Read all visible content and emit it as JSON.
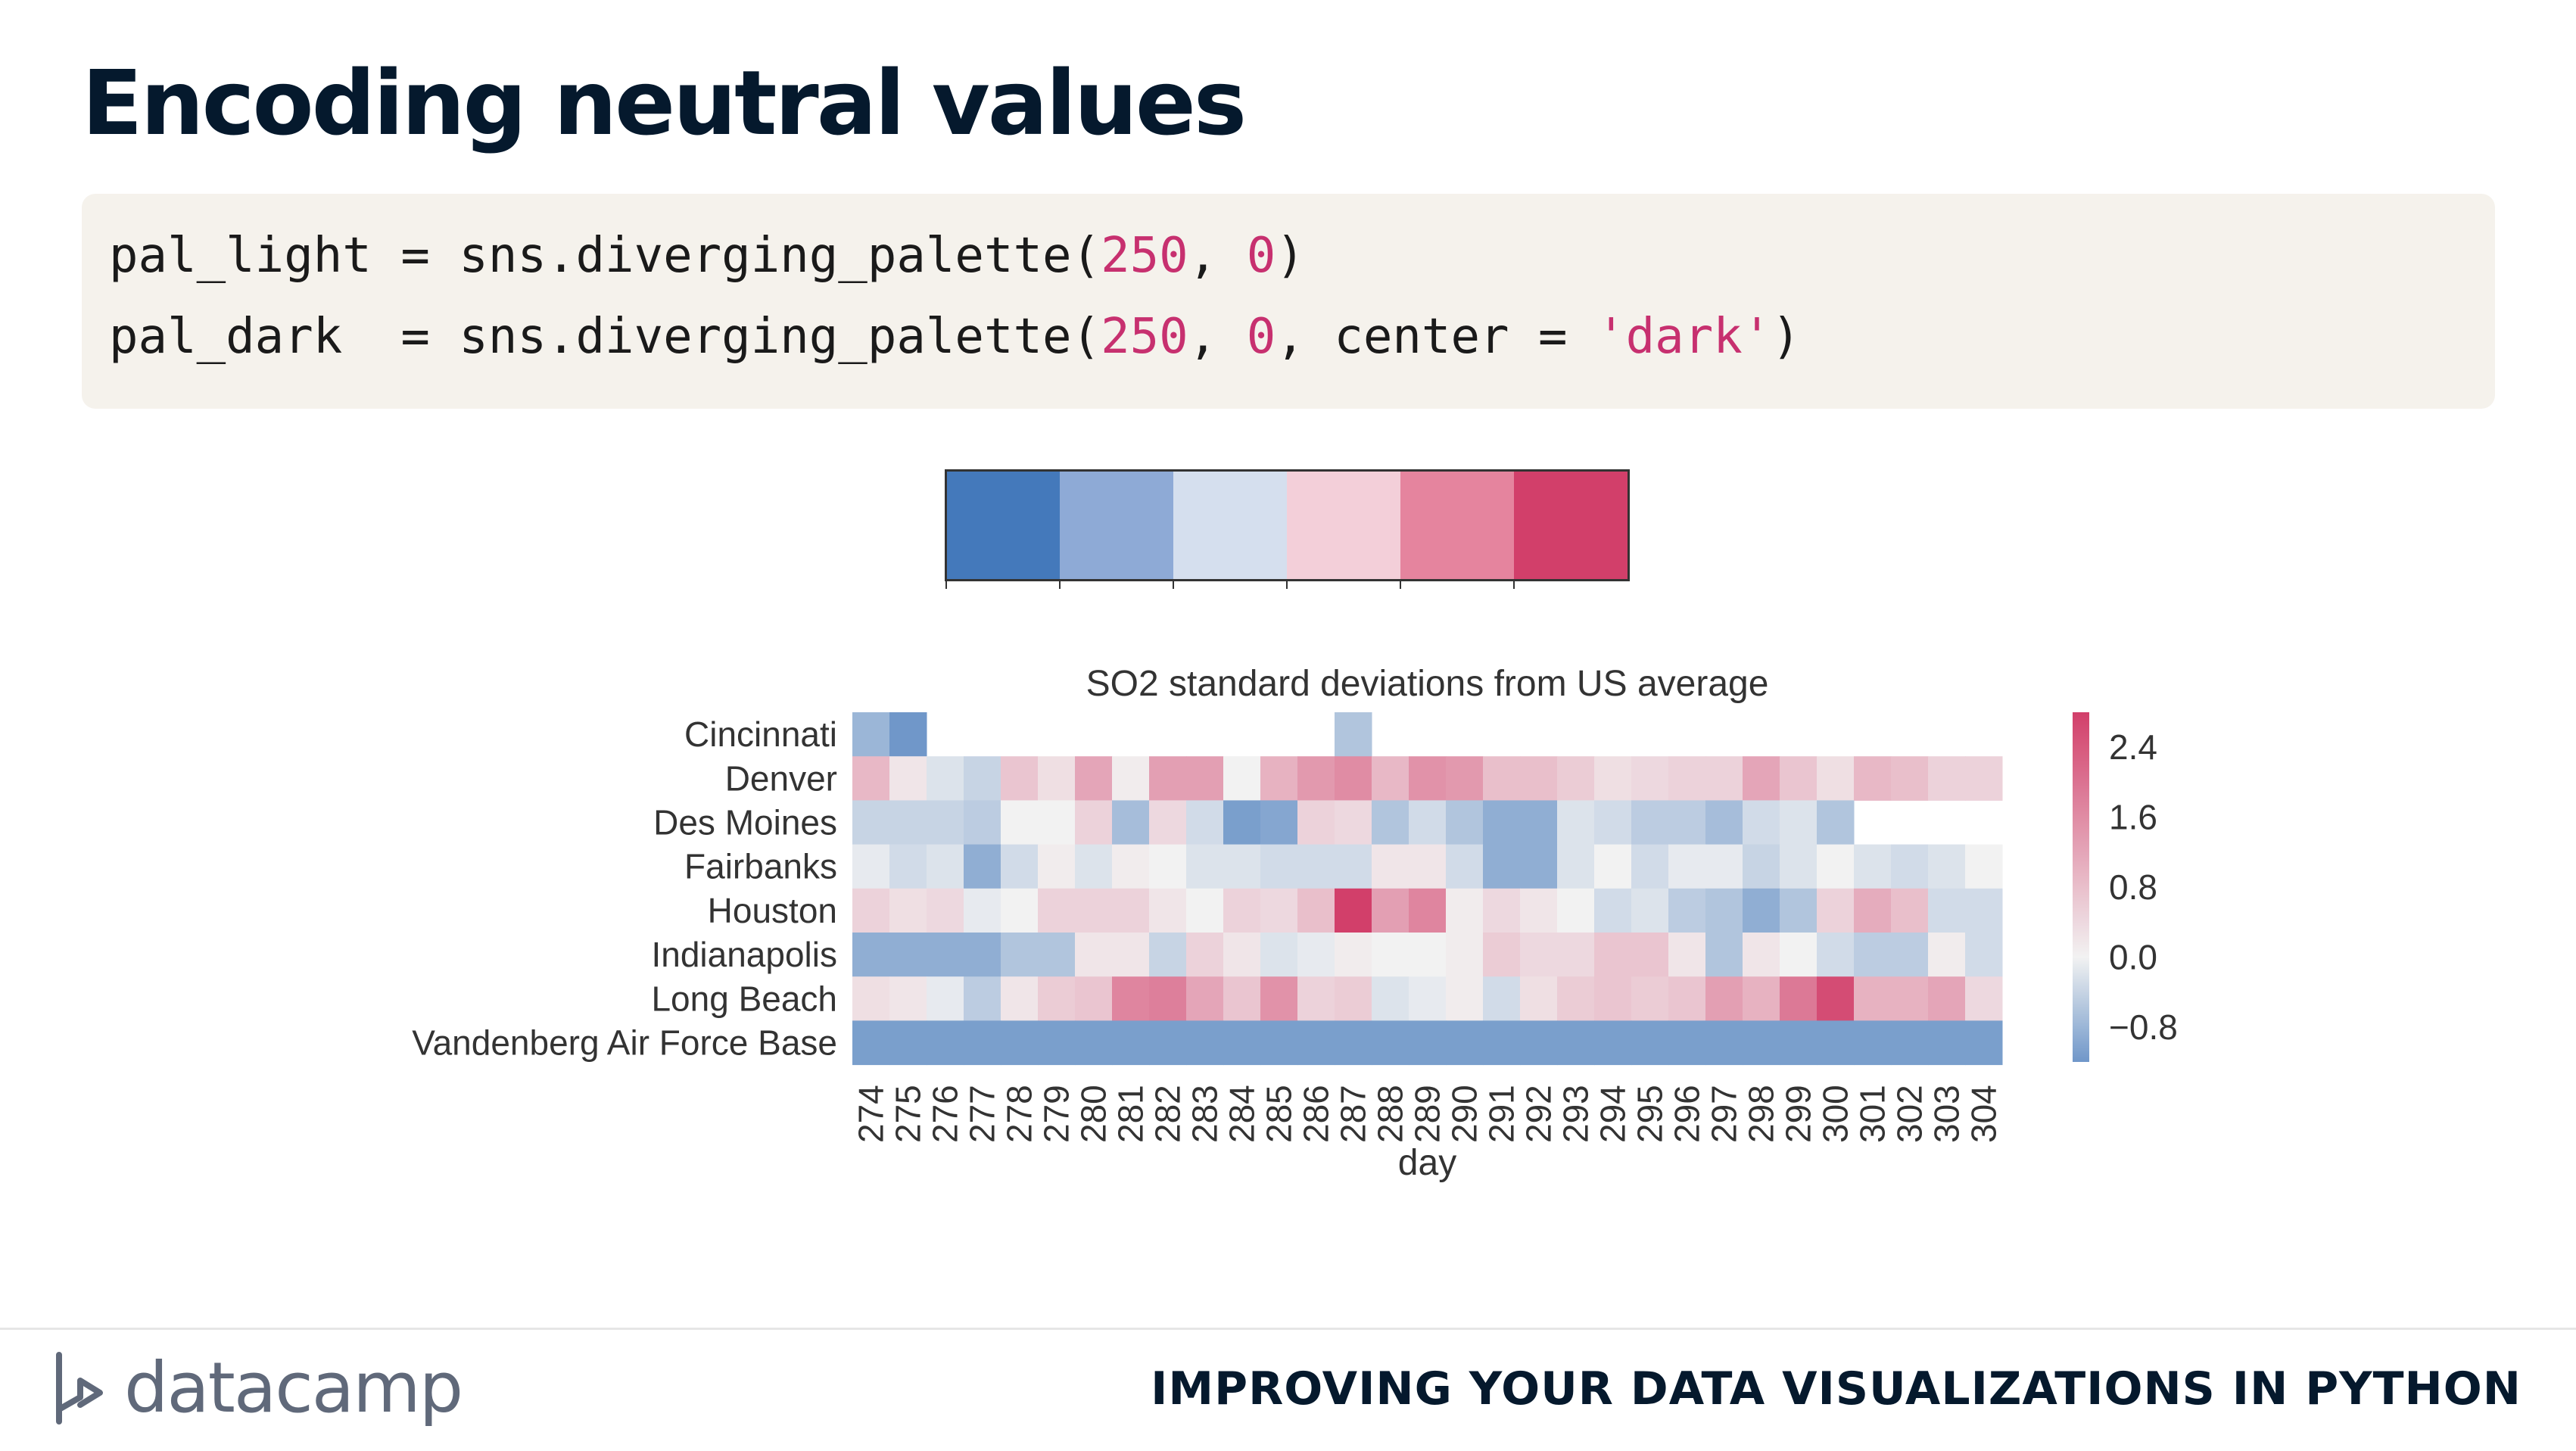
{
  "slide": {
    "title": "Encoding neutral values",
    "code": {
      "line1": {
        "a": "pal_light = sns.diverging_palette(",
        "n1": "250",
        "b": ", ",
        "n2": "0",
        "c": ")"
      },
      "line2": {
        "a": "pal_dark  = sns.diverging_palette(",
        "n1": "250",
        "b": ", ",
        "n2": "0",
        "c": ", center = ",
        "s": "'dark'",
        "d": ")"
      }
    },
    "palette_colors": [
      "#4479bb",
      "#8eaad6",
      "#d5dfee",
      "#f3cfd9",
      "#e5849e",
      "#d23f6a"
    ]
  },
  "footer": {
    "brand": "datacamp",
    "course": "IMPROVING YOUR DATA VISUALIZATIONS IN PYTHON"
  },
  "chart_data": {
    "type": "heatmap",
    "title": "SO2 standard deviations from US average",
    "xlabel": "day",
    "ylabel": "",
    "x": [
      274,
      275,
      276,
      277,
      278,
      279,
      280,
      281,
      282,
      283,
      284,
      285,
      286,
      287,
      288,
      289,
      290,
      291,
      292,
      293,
      294,
      295,
      296,
      297,
      298,
      299,
      300,
      301,
      302,
      303,
      304
    ],
    "y": [
      "Cincinnati",
      "Denver",
      "Des Moines",
      "Fairbanks",
      "Houston",
      "Indianapolis",
      "Long Beach",
      "Vandenberg Air Force Base"
    ],
    "values": [
      [
        -0.8,
        -1.2,
        null,
        null,
        null,
        null,
        null,
        null,
        null,
        null,
        null,
        null,
        null,
        -0.6,
        null,
        null,
        null,
        null,
        null,
        null,
        null,
        null,
        null,
        null,
        null,
        null,
        null,
        null,
        null,
        null,
        null
      ],
      [
        0.9,
        0.2,
        -0.2,
        -0.4,
        0.7,
        0.3,
        1.2,
        0.1,
        1.3,
        1.3,
        0.0,
        1.0,
        1.4,
        1.6,
        0.9,
        1.5,
        1.4,
        0.8,
        0.8,
        0.6,
        0.3,
        0.4,
        0.5,
        0.5,
        1.2,
        0.7,
        0.3,
        0.9,
        0.8,
        0.5,
        0.5
      ],
      [
        -0.4,
        -0.4,
        -0.4,
        -0.5,
        0.0,
        0.0,
        0.5,
        -0.7,
        0.4,
        -0.3,
        -1.1,
        -1.0,
        0.5,
        0.4,
        -0.6,
        -0.3,
        -0.6,
        -0.9,
        -0.9,
        -0.2,
        -0.3,
        -0.5,
        -0.5,
        -0.7,
        -0.3,
        -0.2,
        -0.6,
        null,
        null,
        null,
        null
      ],
      [
        -0.1,
        -0.3,
        -0.2,
        -0.9,
        -0.3,
        0.1,
        -0.2,
        0.1,
        0.0,
        -0.2,
        -0.2,
        -0.3,
        -0.3,
        -0.3,
        0.2,
        0.2,
        -0.3,
        -0.9,
        -0.9,
        -0.2,
        0.0,
        -0.3,
        -0.1,
        -0.1,
        -0.4,
        -0.2,
        0.0,
        -0.2,
        -0.3,
        -0.2,
        0.0
      ],
      [
        0.5,
        0.3,
        0.4,
        -0.1,
        0.0,
        0.5,
        0.5,
        0.5,
        0.2,
        0.0,
        0.5,
        0.4,
        0.8,
        2.8,
        1.3,
        1.7,
        0.1,
        0.4,
        0.2,
        0.0,
        -0.3,
        -0.2,
        -0.5,
        -0.6,
        -0.9,
        -0.6,
        0.5,
        1.1,
        0.8,
        -0.3,
        -0.3
      ],
      [
        -0.9,
        -0.9,
        -0.9,
        -0.9,
        -0.6,
        -0.6,
        0.2,
        0.2,
        -0.4,
        0.5,
        0.2,
        -0.2,
        -0.1,
        0.1,
        0.0,
        0.0,
        0.1,
        0.6,
        0.4,
        0.4,
        0.7,
        0.7,
        0.2,
        -0.6,
        0.2,
        0.0,
        -0.3,
        -0.5,
        -0.5,
        0.1,
        -0.3
      ],
      [
        0.3,
        0.2,
        -0.1,
        -0.5,
        0.2,
        0.6,
        0.7,
        1.7,
        1.8,
        1.2,
        0.7,
        1.5,
        0.5,
        0.6,
        -0.2,
        -0.1,
        0.1,
        -0.3,
        0.3,
        0.6,
        0.7,
        0.6,
        0.7,
        1.3,
        1.0,
        1.9,
        2.6,
        1.0,
        1.0,
        1.2,
        0.4
      ],
      [
        -1.1,
        -1.1,
        -1.1,
        -1.1,
        -1.1,
        -1.1,
        -1.1,
        -1.1,
        -1.1,
        -1.1,
        -1.1,
        -1.1,
        -1.1,
        -1.1,
        -1.1,
        -1.1,
        -1.1,
        -1.1,
        -1.1,
        -1.1,
        -1.1,
        -1.1,
        -1.1,
        -1.1,
        -1.1,
        -1.1,
        -1.1,
        -1.1,
        -1.1,
        -1.1,
        -1.1
      ]
    ],
    "colorbar": {
      "ticks": [
        2.4,
        1.6,
        0.8,
        0.0,
        -0.8
      ],
      "tick_labels": [
        "2.4",
        "1.6",
        "0.8",
        "0.0",
        "−0.8"
      ],
      "range": [
        -1.2,
        2.8
      ]
    },
    "colormap": "diverging blue-white-red (sns.diverging_palette(250, 0))"
  }
}
